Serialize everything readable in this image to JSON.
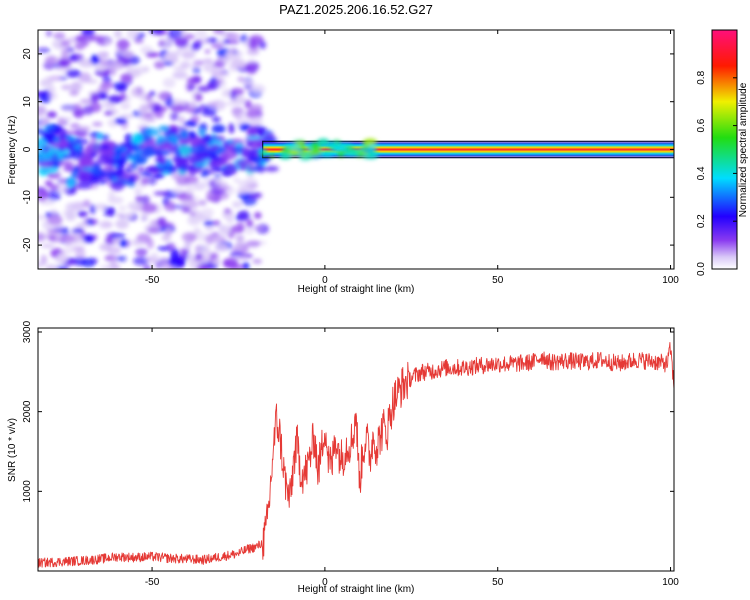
{
  "title": "PAZ1.2025.206.16.52.G27",
  "chart_data": [
    {
      "type": "heatmap",
      "name": "spectrogram",
      "xlabel": "Height of straight line (km)",
      "ylabel": "Frequency (Hz)",
      "xlim": [
        -83,
        101
      ],
      "ylim": [
        -25,
        25
      ],
      "xticks": [
        -50,
        0,
        50,
        100
      ],
      "xtick_labels": [
        "-50",
        "0",
        "50",
        "100"
      ],
      "yticks": [
        -20,
        -10,
        0,
        10,
        20
      ],
      "ytick_labels": [
        "-20",
        "-10",
        "0",
        "10",
        "20"
      ],
      "colorbar": {
        "label": "Normalized spectral amplitude",
        "range": [
          0,
          1
        ],
        "ticks": [
          0.0,
          0.2,
          0.4,
          0.6,
          0.8
        ],
        "tick_labels": [
          "0.0",
          "0.2",
          "0.4",
          "0.6",
          "0.8"
        ],
        "colormap": "rainbow (white-violet-blue-cyan-green-yellow-red-magenta)"
      },
      "features": {
        "noise_region_x": [
          -83,
          -18
        ],
        "signal_start_x": -18,
        "signal_frequency_hz": 0,
        "signal_band_halfwidth_hz": 1.5,
        "signal_peak_amplitude": 1.0
      },
      "grid": false
    },
    {
      "type": "line",
      "name": "snr",
      "xlabel": "Height of straight line (km)",
      "ylabel": "SNR (10 * v/v)",
      "xlim": [
        -83,
        101
      ],
      "ylim": [
        0,
        3050
      ],
      "xticks": [
        -50,
        0,
        50,
        100
      ],
      "xtick_labels": [
        "-50",
        "0",
        "50",
        "100"
      ],
      "yticks": [
        1000,
        2000,
        3000
      ],
      "ytick_labels": [
        "1000",
        "2000",
        "3000"
      ],
      "color": "#e53935",
      "series": [
        {
          "x": [
            -83,
            -75,
            -70,
            -65,
            -60,
            -55,
            -50,
            -45,
            -40,
            -35,
            -30,
            -25,
            -22,
            -20,
            -18,
            -17,
            -16,
            -15,
            -14,
            -13,
            -12,
            -11,
            -10,
            -9,
            -8,
            -7,
            -6,
            -5,
            -4,
            -3,
            -2,
            -1,
            0,
            1,
            2,
            3,
            4,
            5,
            6,
            7,
            8,
            9,
            10,
            11,
            12,
            13,
            14,
            15,
            16,
            17,
            18,
            19,
            20,
            22,
            24,
            26,
            28,
            30,
            35,
            40,
            45,
            50,
            55,
            60,
            63,
            65,
            70,
            75,
            80,
            85,
            90,
            95,
            99,
            100,
            101
          ],
          "values": [
            100,
            120,
            130,
            150,
            180,
            170,
            180,
            160,
            150,
            140,
            180,
            220,
            280,
            300,
            350,
            500,
            900,
            1500,
            1900,
            1700,
            1300,
            1000,
            900,
            1400,
            1600,
            1250,
            1200,
            1300,
            1500,
            1700,
            1250,
            1500,
            1850,
            1400,
            1300,
            1700,
            1500,
            1400,
            1550,
            1600,
            1650,
            2000,
            1100,
            1500,
            1700,
            1400,
            1700,
            1550,
            1700,
            1800,
            1750,
            2000,
            2150,
            2300,
            2400,
            2450,
            2500,
            2500,
            2550,
            2550,
            2580,
            2600,
            2600,
            2620,
            2700,
            2620,
            2640,
            2620,
            2650,
            2600,
            2650,
            2630,
            2600,
            2800,
            2300
          ]
        }
      ],
      "grid": false
    }
  ]
}
